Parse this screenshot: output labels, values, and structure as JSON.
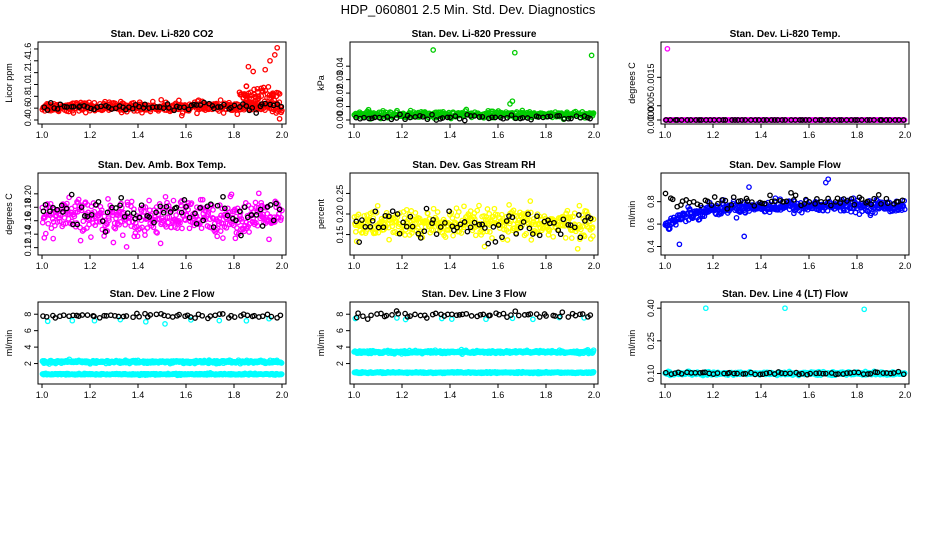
{
  "title": "HDP_060801  2.5 Min. Std. Dev. Diagnostics",
  "colors": {
    "black": "#000000",
    "red": "#ff0000",
    "green": "#00cc00",
    "magenta": "#ff00ff",
    "yellow": "#ffff00",
    "blue": "#0000ff",
    "cyan": "#00ffff"
  },
  "chart_data": [
    {
      "type": "scatter",
      "title": "Stan. Dev. Li-820 CO2",
      "xlabel": "",
      "ylabel": "Licor ppm",
      "xlim": [
        1.0,
        2.0
      ],
      "ylim": [
        0.4,
        1.65
      ],
      "xticks": [
        "1.0",
        "1.2",
        "1.4",
        "1.6",
        "1.8",
        "2.0"
      ],
      "yticks": [
        "0.4",
        "0.6",
        "0.8",
        "1.0",
        "1.2",
        "1.4",
        "1.6"
      ],
      "series": [
        {
          "name": "main",
          "color": "red",
          "n": 400,
          "base": 0.62,
          "spread": 0.07,
          "extra": [
            {
              "from": 1.82,
              "to": 1.99,
              "base": 0.8,
              "spread": 0.12,
              "n": 60
            }
          ],
          "outliers": [
            {
              "x": 1.98,
              "y": 1.62
            },
            {
              "x": 1.97,
              "y": 1.5
            },
            {
              "x": 1.95,
              "y": 1.4
            },
            {
              "x": 1.93,
              "y": 1.25
            },
            {
              "x": 1.86,
              "y": 1.3
            },
            {
              "x": 1.88,
              "y": 1.22
            },
            {
              "x": 1.99,
              "y": 0.42
            }
          ]
        },
        {
          "name": "reference",
          "color": "black",
          "n": 70,
          "base": 0.62,
          "spread": 0.06
        }
      ]
    },
    {
      "type": "scatter",
      "title": "Stan. Dev. Li-820 Pressure",
      "xlabel": "",
      "ylabel": "kPa",
      "xlim": [
        1.0,
        2.0
      ],
      "ylim": [
        0.0,
        0.055
      ],
      "xticks": [
        "1.0",
        "1.2",
        "1.4",
        "1.6",
        "1.8",
        "2.0"
      ],
      "yticks": [
        "0.00",
        "0.01",
        "0.02",
        "0.03",
        "0.04"
      ],
      "series": [
        {
          "name": "main",
          "color": "green",
          "n": 400,
          "base": 0.004,
          "spread": 0.002,
          "outliers": [
            {
              "x": 1.33,
              "y": 0.052
            },
            {
              "x": 1.67,
              "y": 0.05
            },
            {
              "x": 1.99,
              "y": 0.048
            },
            {
              "x": 1.66,
              "y": 0.014
            },
            {
              "x": 1.65,
              "y": 0.012
            }
          ]
        },
        {
          "name": "reference",
          "color": "black",
          "n": 60,
          "base": 0.002,
          "spread": 0.0015
        }
      ]
    },
    {
      "type": "scatter",
      "title": "Stan. Dev. Li-820 Temp.",
      "xlabel": "",
      "ylabel": "degrees C",
      "xlim": [
        1.0,
        2.0
      ],
      "ylim": [
        0.0,
        0.0026
      ],
      "xticks": [
        "1.0",
        "1.2",
        "1.4",
        "1.6",
        "1.8",
        "2.0"
      ],
      "yticks": [
        "0.0000",
        "0.0005",
        "0.0015"
      ],
      "ytickvals": [
        0.0,
        0.0005,
        0.0015
      ],
      "series": [
        {
          "name": "main",
          "color": "magenta",
          "n": 250,
          "base": 0.0,
          "spread": 0.0,
          "outliers": [
            {
              "x": 1.01,
              "y": 0.0025
            }
          ]
        },
        {
          "name": "reference",
          "color": "black",
          "n": 60,
          "base": 0.0,
          "spread": 0.0
        }
      ]
    },
    {
      "type": "scatter",
      "title": "Stan. Dev. Amb. Box Temp.",
      "xlabel": "",
      "ylabel": "degrees C",
      "xlim": [
        1.0,
        2.0
      ],
      "ylim": [
        0.115,
        0.225
      ],
      "xticks": [
        "1.0",
        "1.2",
        "1.4",
        "1.6",
        "1.8",
        "2.0"
      ],
      "yticks": [
        "0.12",
        "0.14",
        "0.16",
        "0.18",
        "0.20"
      ],
      "series": [
        {
          "name": "main",
          "color": "magenta",
          "n": 420,
          "base": 0.165,
          "spread": 0.022
        },
        {
          "name": "reference",
          "color": "black",
          "n": 70,
          "base": 0.17,
          "spread": 0.022
        }
      ]
    },
    {
      "type": "scatter",
      "title": "Stan. Dev. Gas Stream RH",
      "xlabel": "",
      "ylabel": "percent",
      "xlim": [
        1.0,
        2.0
      ],
      "ylim": [
        0.11,
        0.29
      ],
      "xticks": [
        "1.0",
        "1.2",
        "1.4",
        "1.6",
        "1.8",
        "2.0"
      ],
      "yticks": [
        "0.15",
        "0.20",
        "0.25"
      ],
      "series": [
        {
          "name": "main",
          "color": "yellow",
          "n": 420,
          "base": 0.175,
          "spread": 0.03
        },
        {
          "name": "reference",
          "color": "black",
          "n": 70,
          "base": 0.175,
          "spread": 0.03
        }
      ]
    },
    {
      "type": "scatter",
      "title": "Stan. Dev. Sample Flow",
      "xlabel": "",
      "ylabel": "ml/min",
      "xlim": [
        1.0,
        2.0
      ],
      "ylim": [
        0.36,
        1.02
      ],
      "xticks": [
        "1.0",
        "1.2",
        "1.4",
        "1.6",
        "1.8",
        "2.0"
      ],
      "yticks": [
        "0.4",
        "0.6",
        "0.8"
      ],
      "series": [
        {
          "name": "main",
          "color": "blue",
          "n": 420,
          "trend": "rise",
          "base": 0.76,
          "spread": 0.045,
          "outliers": [
            {
              "x": 1.68,
              "y": 1.0
            },
            {
              "x": 1.67,
              "y": 0.97
            },
            {
              "x": 1.33,
              "y": 0.49
            },
            {
              "x": 1.35,
              "y": 0.93
            },
            {
              "x": 1.06,
              "y": 0.42
            }
          ]
        },
        {
          "name": "reference",
          "color": "black",
          "n": 70,
          "base": 0.8,
          "spread": 0.05
        }
      ]
    },
    {
      "type": "scatter",
      "title": "Stan. Dev. Line 2 Flow",
      "xlabel": "",
      "ylabel": "ml/min",
      "xlim": [
        1.0,
        2.0
      ],
      "ylim": [
        0.0,
        9.0
      ],
      "xticks": [
        "1.0",
        "1.2",
        "1.4",
        "1.6",
        "1.8",
        "2.0"
      ],
      "yticks": [
        "2",
        "4",
        "6",
        "8"
      ],
      "series": [
        {
          "name": "band_upper",
          "color": "cyan",
          "n": 400,
          "base": 2.2,
          "spread": 0.15
        },
        {
          "name": "band_lower",
          "color": "cyan",
          "n": 400,
          "base": 0.7,
          "spread": 0.07
        },
        {
          "name": "top_cyan",
          "color": "cyan",
          "n": 10,
          "base": 7.2,
          "spread": 0.2
        },
        {
          "name": "reference",
          "color": "black",
          "n": 60,
          "base": 7.8,
          "spread": 0.25
        }
      ]
    },
    {
      "type": "scatter",
      "title": "Stan. Dev. Line 3 Flow",
      "xlabel": "",
      "ylabel": "ml/min",
      "xlim": [
        1.0,
        2.0
      ],
      "ylim": [
        0.0,
        9.0
      ],
      "xticks": [
        "1.0",
        "1.2",
        "1.4",
        "1.6",
        "1.8",
        "2.0"
      ],
      "yticks": [
        "2",
        "4",
        "6",
        "8"
      ],
      "series": [
        {
          "name": "band_upper",
          "color": "cyan",
          "n": 400,
          "base": 3.4,
          "spread": 0.15
        },
        {
          "name": "band_lower",
          "color": "cyan",
          "n": 400,
          "base": 0.9,
          "spread": 0.07
        },
        {
          "name": "top_cyan",
          "color": "cyan",
          "n": 10,
          "base": 7.5,
          "spread": 0.2
        },
        {
          "name": "reference",
          "color": "black",
          "n": 60,
          "base": 7.9,
          "spread": 0.3
        }
      ]
    },
    {
      "type": "scatter",
      "title": "Stan. Dev. Line 4 (LT) Flow",
      "xlabel": "",
      "ylabel": "ml/min",
      "xlim": [
        1.0,
        2.0
      ],
      "ylim": [
        0.07,
        0.41
      ],
      "xticks": [
        "1.0",
        "1.2",
        "1.4",
        "1.6",
        "1.8",
        "2.0"
      ],
      "yticks": [
        "0.10",
        "0.25",
        "0.40"
      ],
      "series": [
        {
          "name": "main",
          "color": "cyan",
          "n": 420,
          "base": 0.1,
          "spread": 0.006,
          "outliers": [
            {
              "x": 1.17,
              "y": 0.4
            },
            {
              "x": 1.5,
              "y": 0.4
            },
            {
              "x": 1.83,
              "y": 0.395
            }
          ]
        },
        {
          "name": "reference",
          "color": "black",
          "n": 60,
          "base": 0.1,
          "spread": 0.006
        }
      ]
    }
  ]
}
